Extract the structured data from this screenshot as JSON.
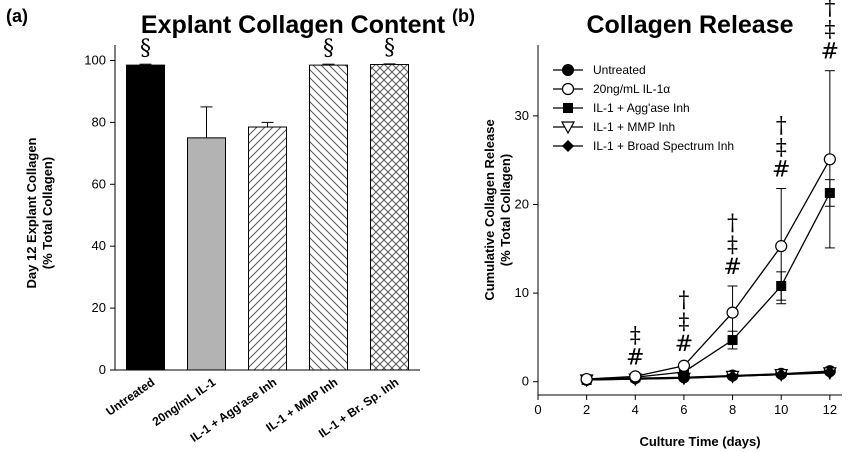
{
  "chart_data": [
    {
      "panel": "(a)",
      "type": "bar",
      "title": "Explant Collagen Content",
      "ylabel_lines": [
        "Day 12 Explant Collagen",
        "(% Total Collagen)"
      ],
      "xlabel": "",
      "ylim": [
        0,
        105
      ],
      "yticks": [
        0,
        20,
        40,
        60,
        80,
        100
      ],
      "categories": [
        "Untreated",
        "20ng/mL IL-1",
        "IL-1 + Agg'ase Inh",
        "IL-1 + MMP Inh",
        "IL-1 + Br. Sp. Inh"
      ],
      "values": [
        98.5,
        75,
        78.5,
        98.5,
        98.7
      ],
      "errors": [
        0.3,
        10,
        1.5,
        0.3,
        0.2
      ],
      "fills": [
        "#000000",
        "#b3b3b3",
        "pattern:diag",
        "pattern:diag-dense",
        "pattern:crosshatch"
      ],
      "annotations": [
        "§",
        "",
        "",
        "§",
        "§"
      ]
    },
    {
      "panel": "(b)",
      "type": "line",
      "title": "Collagen Release",
      "ylabel_lines": [
        "Cumulative Collagen Release",
        "(% Total Collagen)"
      ],
      "xlabel": "Culture Time (days)",
      "xlim": [
        0,
        12.5
      ],
      "ylim": [
        -1.5,
        38
      ],
      "xticks": [
        0,
        2,
        4,
        6,
        8,
        10,
        12
      ],
      "yticks": [
        0,
        10,
        20,
        30
      ],
      "x": [
        2,
        4,
        6,
        8,
        10,
        12
      ],
      "series": [
        {
          "name": "Untreated",
          "marker": "circle-filled",
          "values": [
            0.2,
            0.4,
            0.5,
            0.7,
            0.9,
            1.2
          ],
          "errors": [
            0,
            0,
            0,
            0,
            0,
            0
          ]
        },
        {
          "name": "20ng/mL IL-1α",
          "marker": "circle-open",
          "values": [
            0.3,
            0.6,
            1.8,
            7.8,
            15.3,
            25.1
          ],
          "errors": [
            0,
            0,
            0.3,
            3,
            6.5,
            10
          ]
        },
        {
          "name": "IL-1 + Agg'ase Inh",
          "marker": "square-filled",
          "values": [
            0.2,
            0.5,
            1.1,
            4.7,
            10.8,
            21.3
          ],
          "errors": [
            0,
            0,
            0.2,
            1,
            1.6,
            1.5
          ]
        },
        {
          "name": "IL-1 + MMP Inh",
          "marker": "triangle-down-open",
          "values": [
            0.2,
            0.3,
            0.4,
            0.6,
            0.8,
            1.0
          ],
          "errors": [
            0,
            0,
            0,
            0,
            0,
            0
          ]
        },
        {
          "name": "IL-1 + Broad Spectrum Inh",
          "marker": "diamond-filled",
          "values": [
            0.2,
            0.3,
            0.4,
            0.6,
            0.8,
            1.1
          ],
          "errors": [
            0,
            0,
            0,
            0,
            0,
            0
          ]
        }
      ],
      "annotations": [
        {
          "x": 4,
          "symbols": [
            "‡",
            "#"
          ]
        },
        {
          "x": 6,
          "symbols": [
            "†",
            "‡",
            "#"
          ]
        },
        {
          "x": 8,
          "symbols": [
            "†",
            "‡",
            "#"
          ]
        },
        {
          "x": 10,
          "symbols": [
            "†",
            "‡",
            "#"
          ]
        },
        {
          "x": 12,
          "symbols": [
            "†",
            "‡",
            "#"
          ]
        }
      ],
      "legend": "top-left"
    }
  ]
}
